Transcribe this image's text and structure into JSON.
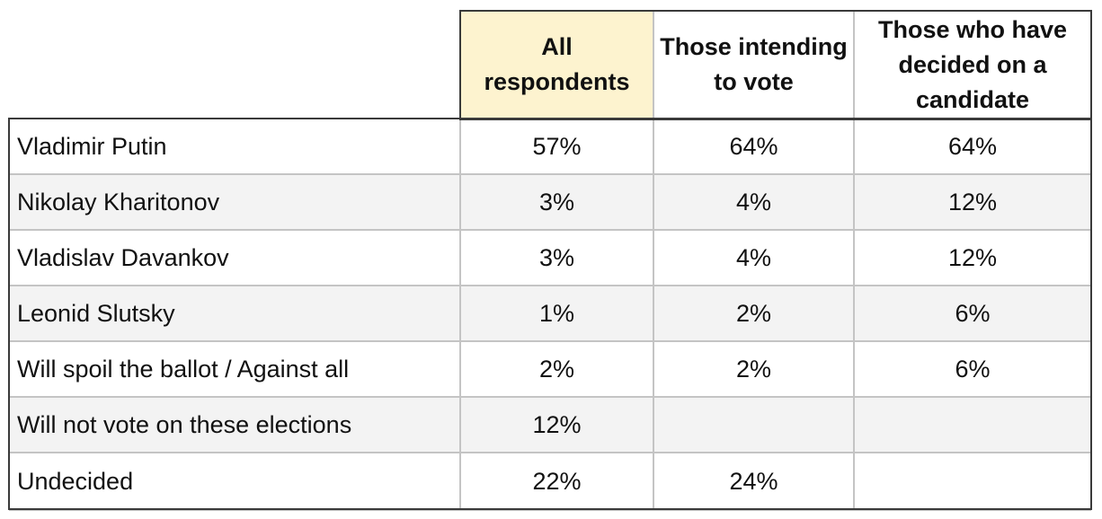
{
  "table": {
    "headers": [
      "All respondents",
      "Those intending to vote",
      "Those who have decided on a candidate"
    ],
    "rows": [
      [
        "Vladimir Putin",
        "57%",
        "64%",
        "64%"
      ],
      [
        "Nikolay Kharitonov",
        "3%",
        "4%",
        "12%"
      ],
      [
        "Vladislav Davankov",
        "3%",
        "4%",
        "12%"
      ],
      [
        "Leonid Slutsky",
        "1%",
        "2%",
        "6%"
      ],
      [
        "Will spoil the ballot / Against all",
        "2%",
        "2%",
        "6%"
      ],
      [
        "Will not vote on these elections",
        "12%",
        null,
        null
      ],
      [
        "Undecided",
        "22%",
        "24%",
        null
      ]
    ]
  }
}
